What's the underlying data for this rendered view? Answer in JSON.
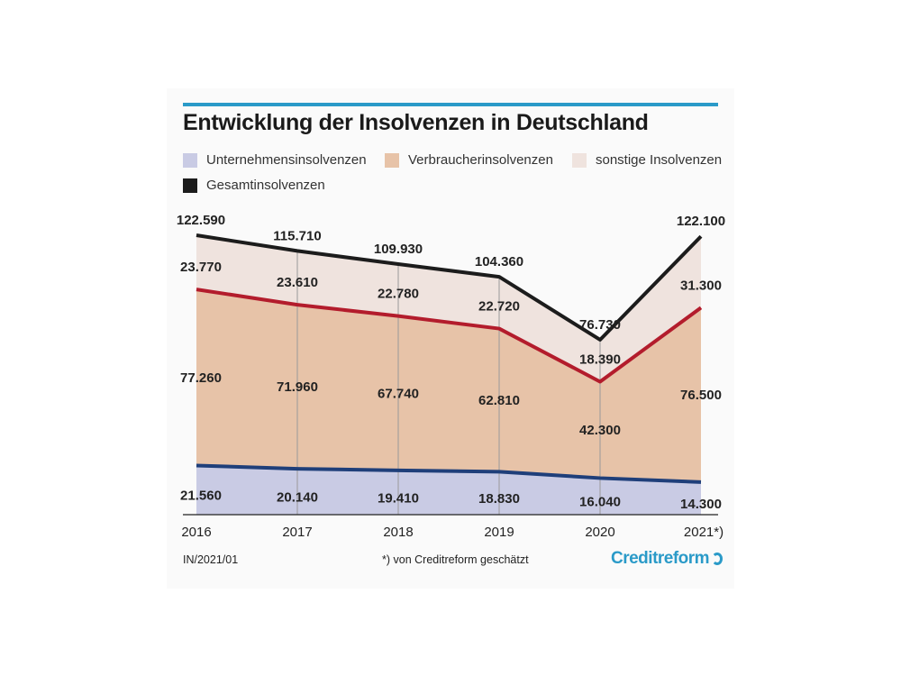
{
  "title": "Entwicklung der Insolvenzen in Deutschland",
  "legend": {
    "corporate": "Unternehmensinsolvenzen",
    "consumer": "Verbraucherinsolvenzen",
    "other": "sonstige Insolvenzen",
    "total": "Gesamtinsolvenzen"
  },
  "colors": {
    "corporate_fill": "#c9cbe4",
    "consumer_fill": "#e7c3a8",
    "other_fill": "#efe3de",
    "corporate_line": "#1f3f7a",
    "consumer_line": "#b31c2c",
    "total_line": "#1c1c1c",
    "accent": "#2a9ac8"
  },
  "footer": {
    "code": "IN/2021/01",
    "note": "*) von Creditreform geschätzt",
    "logo": "Creditreform"
  },
  "chart_data": {
    "type": "area",
    "stacked": true,
    "categories": [
      "2016",
      "2017",
      "2018",
      "2019",
      "2020",
      "2021*)"
    ],
    "series": [
      {
        "name": "Unternehmensinsolvenzen",
        "values": [
          21560,
          20140,
          19410,
          18830,
          16040,
          14300
        ],
        "labels": [
          "21.560",
          "20.140",
          "19.410",
          "18.830",
          "16.040",
          "14.300"
        ]
      },
      {
        "name": "Verbraucherinsolvenzen",
        "values": [
          77260,
          71960,
          67740,
          62810,
          42300,
          76500
        ],
        "labels": [
          "77.260",
          "71.960",
          "67.740",
          "62.810",
          "42.300",
          "76.500"
        ]
      },
      {
        "name": "sonstige Insolvenzen",
        "values": [
          23770,
          23610,
          22780,
          22720,
          18390,
          31300
        ],
        "labels": [
          "23.770",
          "23.610",
          "22.780",
          "22.720",
          "18.390",
          "31.300"
        ]
      }
    ],
    "total": {
      "name": "Gesamtinsolvenzen",
      "values": [
        122590,
        115710,
        109930,
        104360,
        76730,
        122100
      ],
      "labels": [
        "122.590",
        "115.710",
        "109.930",
        "104.360",
        "76.730",
        "122.100"
      ]
    },
    "ylim": [
      0,
      125000
    ]
  }
}
